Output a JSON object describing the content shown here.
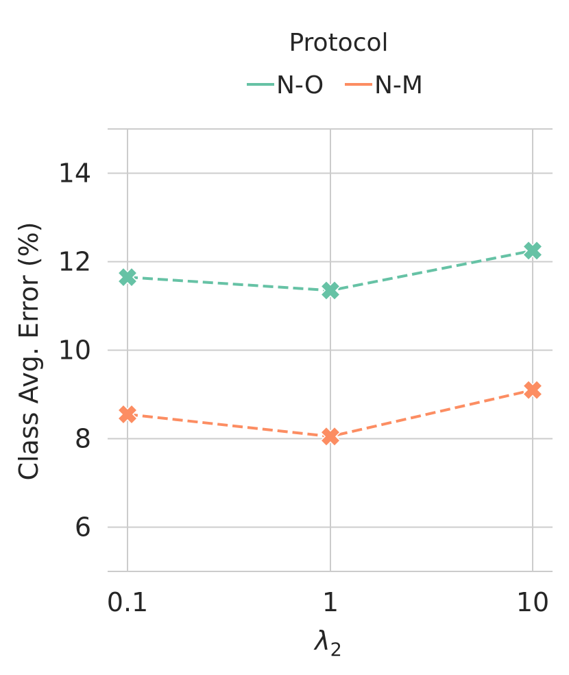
{
  "chart_data": {
    "type": "line",
    "x": [
      "0.1",
      "1",
      "10"
    ],
    "xlabel_symbol": "λ",
    "xlabel_subscript": "2",
    "ylabel": "Class Avg. Error (%)",
    "xscale": "log",
    "ylim": [
      5,
      15
    ],
    "yticks": [
      6,
      8,
      10,
      12,
      14
    ],
    "grid": true,
    "line_style": "dashed",
    "marker": "X",
    "legend": {
      "title": "Protocol",
      "placement": "top-center"
    },
    "series": [
      {
        "name": "N-O",
        "color": "#66c2a5",
        "values": [
          11.65,
          11.35,
          12.25
        ]
      },
      {
        "name": "N-M",
        "color": "#fc8d62",
        "values": [
          8.55,
          8.05,
          9.1
        ]
      }
    ]
  }
}
